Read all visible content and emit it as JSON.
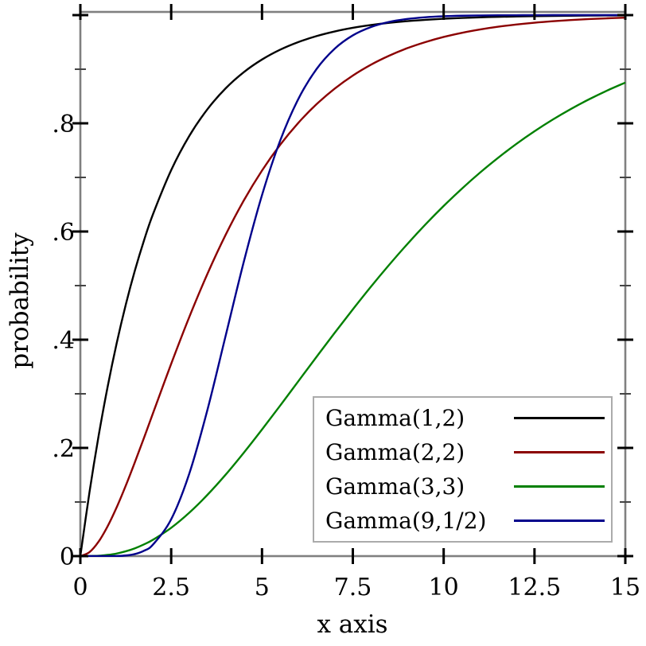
{
  "chart_data": {
    "type": "line",
    "title": "",
    "xlabel": "x axis",
    "ylabel": "probability",
    "xlim": [
      0,
      15
    ],
    "ylim": [
      0,
      1
    ],
    "grid": false,
    "legend_position": "inside lower right",
    "x_ticks": {
      "values": [
        0,
        2.5,
        5,
        7.5,
        10,
        12.5,
        15
      ],
      "labels": [
        "0",
        "2.5",
        "5",
        "7.5",
        "10",
        "12.5",
        "15"
      ]
    },
    "y_ticks": {
      "values": [
        0,
        0.2,
        0.4,
        0.6,
        0.8,
        1.0
      ],
      "labels": [
        "0",
        ".2",
        ".4",
        ".6",
        ".8",
        ""
      ]
    },
    "y_minor_ticks": [
      0.1,
      0.3,
      0.5,
      0.7,
      0.9
    ],
    "x": [
      0,
      0.25,
      0.5,
      0.75,
      1,
      1.25,
      1.5,
      1.75,
      2,
      2.5,
      3,
      3.5,
      4,
      4.5,
      5,
      5.5,
      6,
      6.5,
      7,
      7.5,
      8,
      8.5,
      9,
      9.5,
      10,
      10.5,
      11,
      11.5,
      12,
      12.5,
      13,
      13.5,
      14,
      14.5,
      15
    ],
    "series": [
      {
        "name": "Gamma(1,2)",
        "color": "#000000",
        "values": [
          0,
          0.1175,
          0.2212,
          0.3127,
          0.3935,
          0.4647,
          0.5276,
          0.5831,
          0.6321,
          0.7135,
          0.7769,
          0.8262,
          0.8647,
          0.8946,
          0.9179,
          0.9361,
          0.9502,
          0.9612,
          0.9698,
          0.9765,
          0.9817,
          0.9857,
          0.9889,
          0.9913,
          0.9933,
          0.9948,
          0.9959,
          0.9968,
          0.9975,
          0.9981,
          0.9985,
          0.9988,
          0.9991,
          0.9993,
          0.9994
        ]
      },
      {
        "name": "Gamma(2,2)",
        "color": "#8b0000",
        "values": [
          0,
          0.0072,
          0.0265,
          0.055,
          0.0902,
          0.1302,
          0.1734,
          0.2183,
          0.2642,
          0.3554,
          0.4422,
          0.5221,
          0.594,
          0.6575,
          0.7127,
          0.7603,
          0.8009,
          0.8352,
          0.8641,
          0.8883,
          0.9084,
          0.925,
          0.9389,
          0.9502,
          0.9596,
          0.9672,
          0.9734,
          0.9785,
          0.9826,
          0.986,
          0.9887,
          0.9909,
          0.9927,
          0.9941,
          0.9953
        ]
      },
      {
        "name": "Gamma(3,3)",
        "color": "#008000",
        "values": [
          0,
          0.0001,
          0.0006,
          0.0022,
          0.0048,
          0.0089,
          0.0144,
          0.0216,
          0.0302,
          0.0523,
          0.0803,
          0.1134,
          0.1506,
          0.1912,
          0.234,
          0.2782,
          0.3233,
          0.3682,
          0.4127,
          0.4561,
          0.4982,
          0.5384,
          0.5768,
          0.6131,
          0.6472,
          0.6791,
          0.7088,
          0.7363,
          0.7619,
          0.7853,
          0.8068,
          0.8264,
          0.8443,
          0.8606,
          0.8753
        ]
      },
      {
        "name": "Gamma(9,1/2)",
        "color": "#00008b",
        "values": [
          0,
          0,
          0,
          0,
          0.0002,
          0.0011,
          0.0038,
          0.0099,
          0.0214,
          0.0681,
          0.1528,
          0.2709,
          0.4075,
          0.5444,
          0.6672,
          0.768,
          0.845,
          0.9002,
          0.9379,
          0.9626,
          0.978,
          0.9874,
          0.9929,
          0.9961,
          0.9979,
          0.9989,
          0.9994,
          0.9997,
          0.9998,
          0.9999,
          1,
          1,
          1,
          1,
          1
        ]
      }
    ],
    "colors": {
      "frame": "#808080",
      "major_tick": "#000000",
      "minor_tick": "#444444",
      "tick_label": "#000000",
      "legend_border": "#ababab",
      "background": "#ffffff"
    }
  }
}
